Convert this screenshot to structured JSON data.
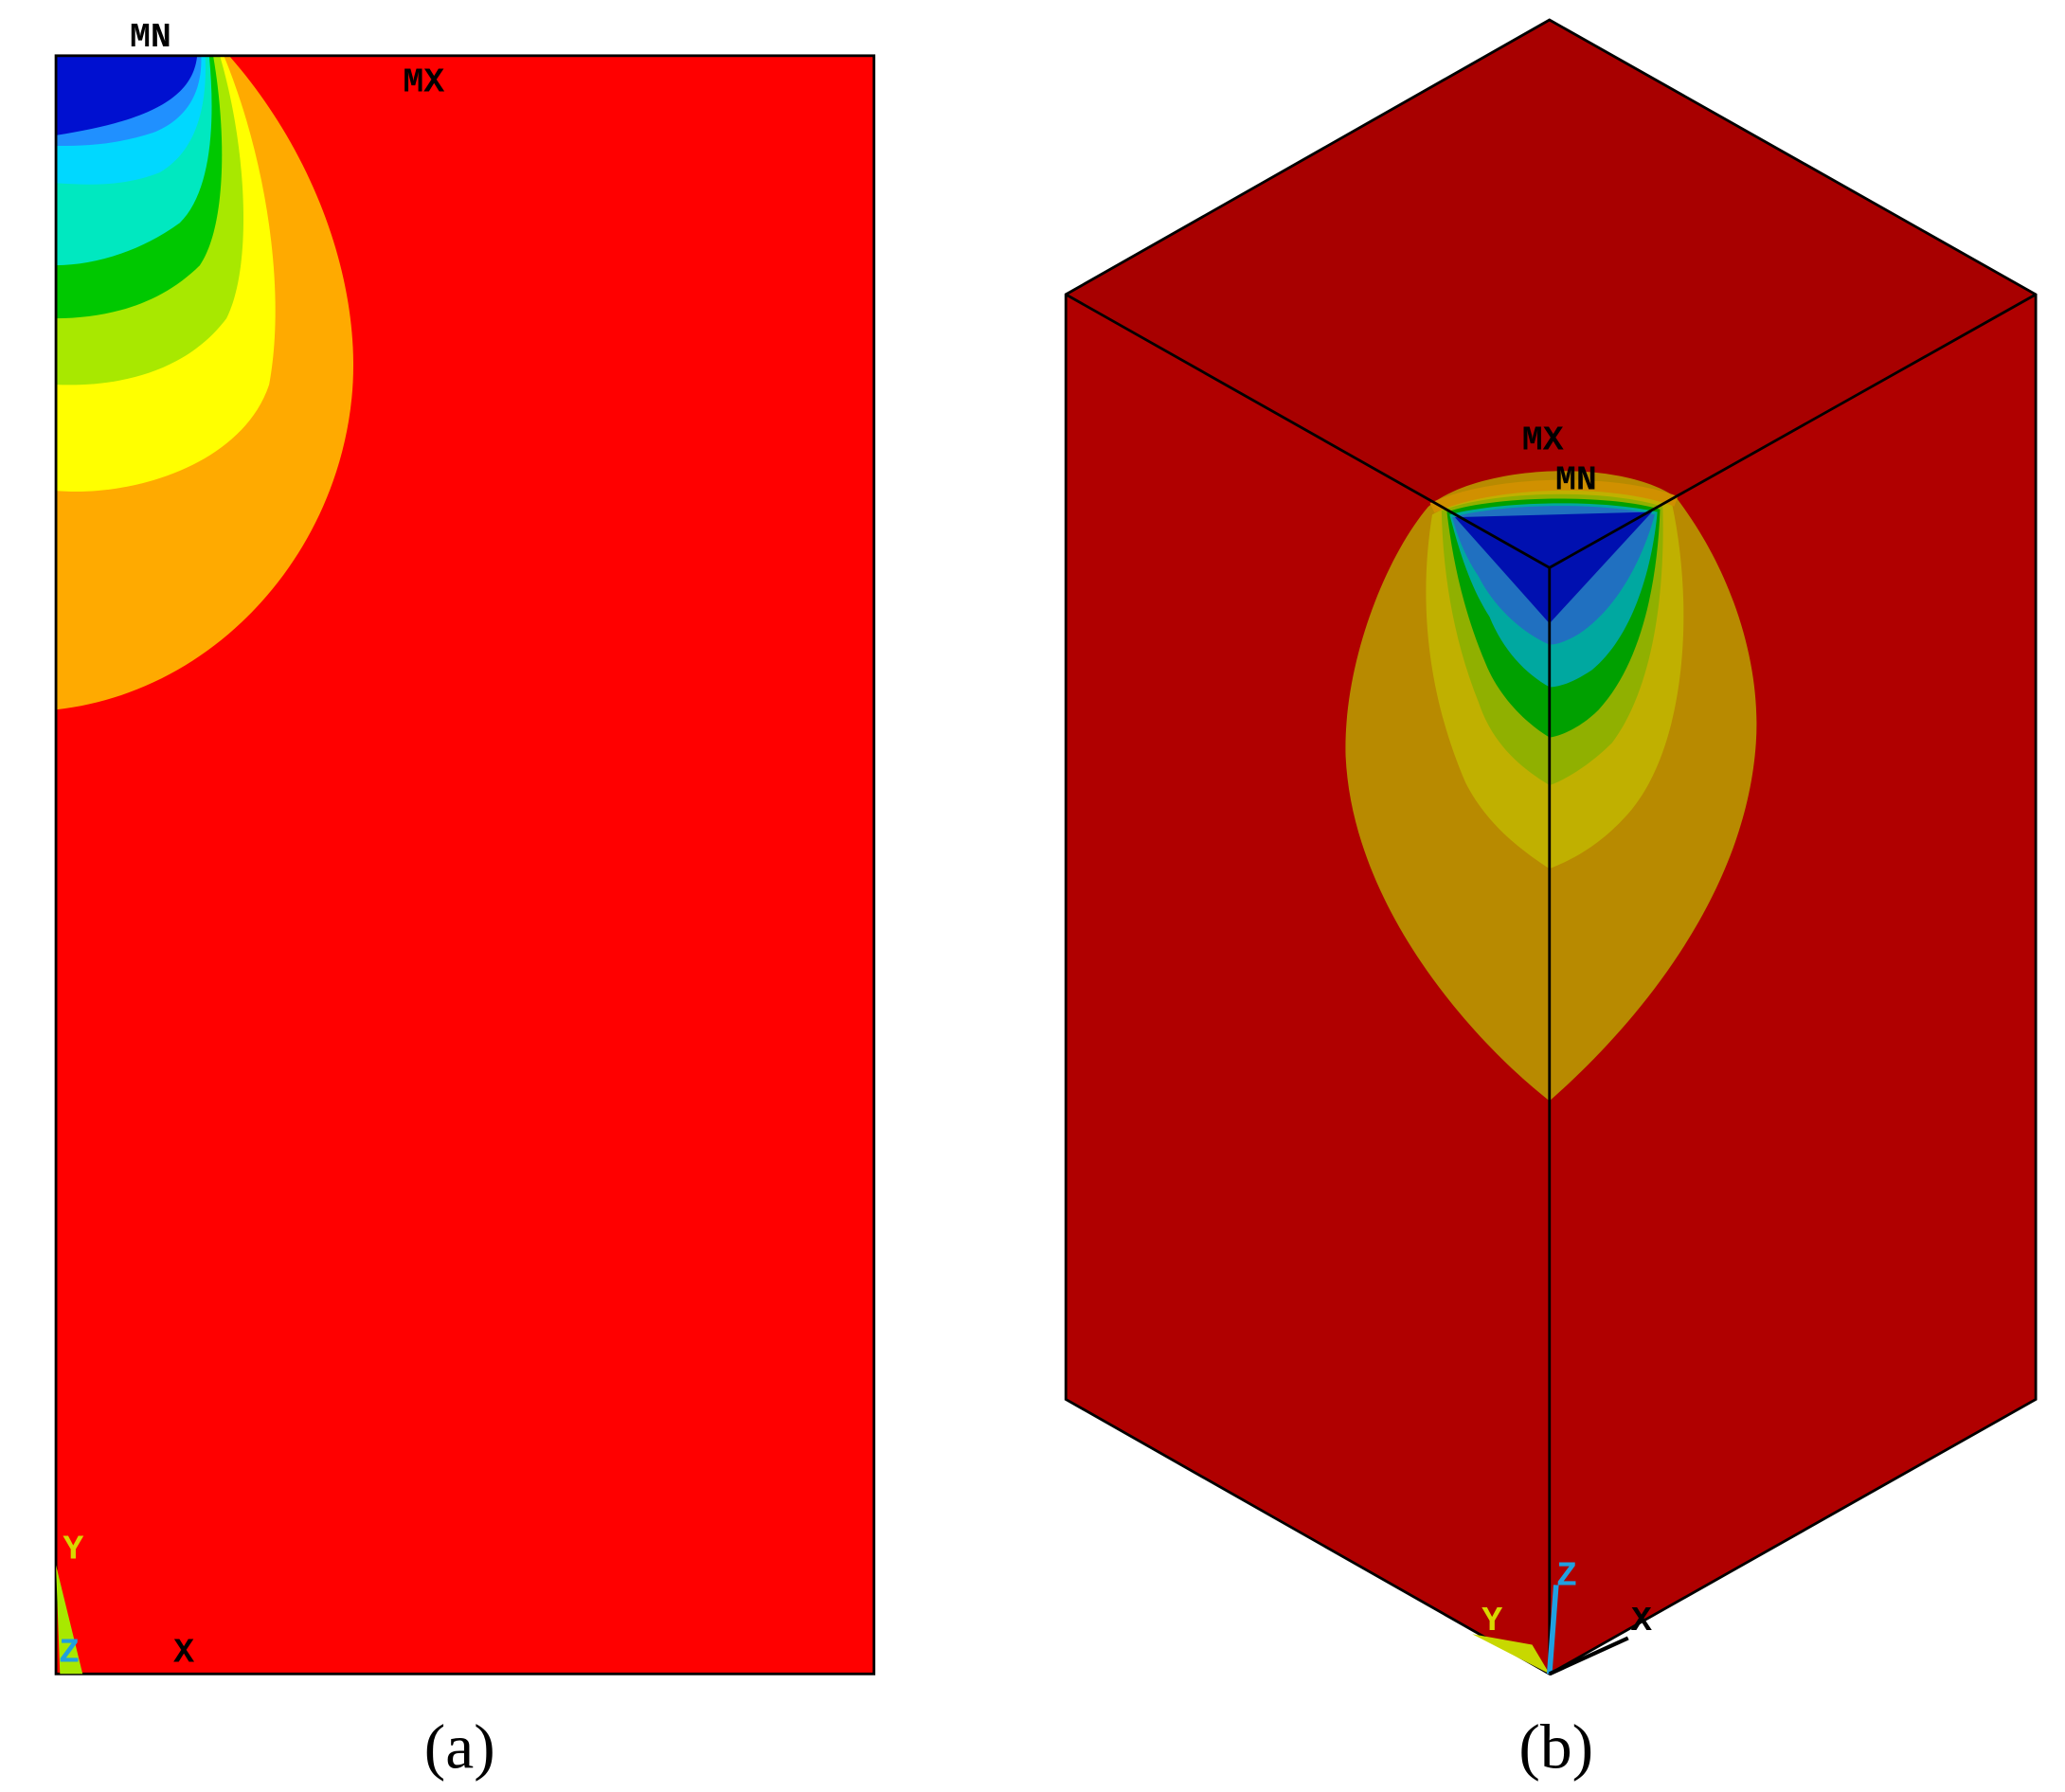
{
  "panels": [
    {
      "caption": "(a)",
      "min_label": "MN",
      "max_label": "MX",
      "axes": {
        "y": "Y",
        "z": "Z",
        "x": "X"
      }
    },
    {
      "caption": "(b)",
      "min_label": "MN",
      "max_label": "MX",
      "axes": {
        "y": "Y",
        "z": "Z",
        "x": "X"
      }
    }
  ]
}
